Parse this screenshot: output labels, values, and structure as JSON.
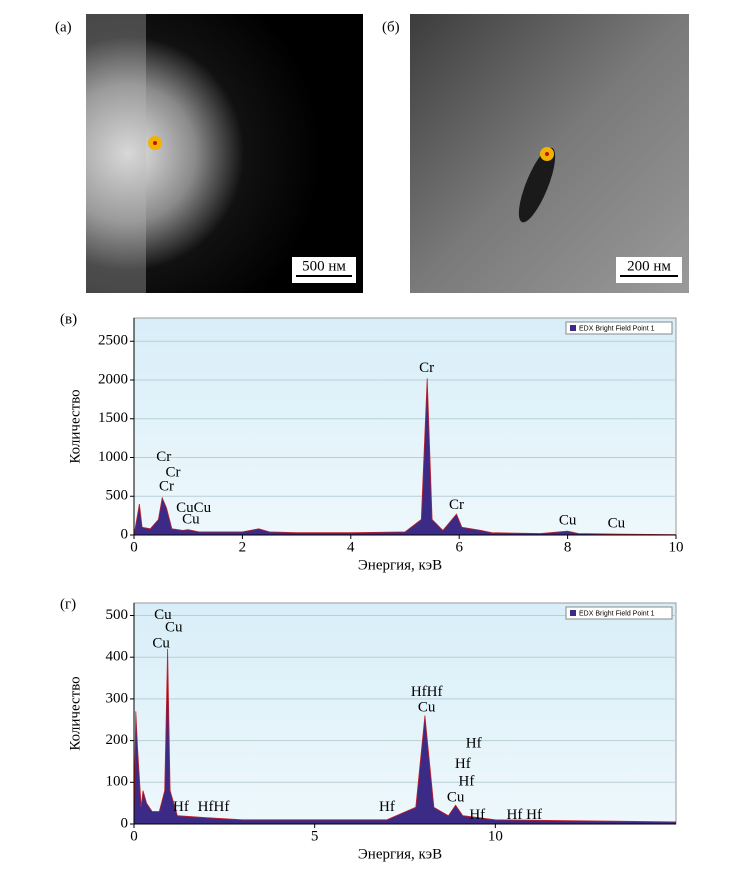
{
  "images": [
    {
      "label": "(a)",
      "scale": "500 нм"
    },
    {
      "label": "(б)",
      "scale": "200 нм"
    }
  ],
  "chart_data": [
    {
      "type": "area",
      "panel_label": "(в)",
      "xlabel": "Энергия, кэВ",
      "ylabel": "Количество",
      "legend": "EDX Bright Field Point 1",
      "color": "#3b2a86",
      "edge_color": "#c0202a",
      "grid": true,
      "x": [
        0,
        0.1,
        0.15,
        0.3,
        0.45,
        0.52,
        0.6,
        0.7,
        0.9,
        1.0,
        1.2,
        1.5,
        2.0,
        2.3,
        2.5,
        3,
        4,
        5,
        5.3,
        5.41,
        5.5,
        5.7,
        5.95,
        6.05,
        6.4,
        6.6,
        7.5,
        8.0,
        8.2,
        9,
        10
      ],
      "values": [
        0,
        400,
        100,
        80,
        200,
        480,
        350,
        80,
        60,
        70,
        40,
        40,
        40,
        80,
        40,
        30,
        30,
        40,
        200,
        2020,
        200,
        60,
        270,
        100,
        60,
        30,
        20,
        50,
        20,
        10,
        5
      ],
      "xlim": [
        0,
        10
      ],
      "ylim": [
        0,
        2800
      ],
      "xticks": [
        0,
        2,
        4,
        6,
        8,
        10
      ],
      "yticks": [
        0,
        500,
        1000,
        1500,
        2000,
        2500
      ],
      "annotations": [
        {
          "text": "Cr",
          "x": 0.55,
          "y": 1000
        },
        {
          "text": "Cr",
          "x": 0.72,
          "y": 800
        },
        {
          "text": "Cr",
          "x": 0.6,
          "y": 620
        },
        {
          "text": "CuCu",
          "x": 1.1,
          "y": 340
        },
        {
          "text": "Cu",
          "x": 1.05,
          "y": 190
        },
        {
          "text": "Cr",
          "x": 5.4,
          "y": 2150
        },
        {
          "text": "Cr",
          "x": 5.95,
          "y": 380
        },
        {
          "text": "Cu",
          "x": 8.0,
          "y": 180
        },
        {
          "text": "Cu",
          "x": 8.9,
          "y": 140
        }
      ]
    },
    {
      "type": "area",
      "panel_label": "(г)",
      "xlabel": "Энергия, кэВ",
      "ylabel": "Количество",
      "legend": "EDX Bright Field Point 1",
      "color": "#3b2a86",
      "edge_color": "#c0202a",
      "grid": true,
      "x": [
        0,
        0.05,
        0.1,
        0.2,
        0.25,
        0.35,
        0.5,
        0.7,
        0.85,
        0.93,
        1.0,
        1.2,
        2,
        3,
        5,
        7,
        7.8,
        8.05,
        8.3,
        8.7,
        8.9,
        9.1,
        10,
        12,
        15
      ],
      "values": [
        0,
        270,
        180,
        40,
        80,
        50,
        30,
        30,
        80,
        420,
        80,
        20,
        15,
        10,
        10,
        10,
        40,
        260,
        40,
        20,
        45,
        20,
        10,
        8,
        5
      ],
      "xlim": [
        0,
        15
      ],
      "ylim": [
        0,
        530
      ],
      "xticks": [
        0,
        5,
        10
      ],
      "yticks": [
        0,
        100,
        200,
        300,
        400,
        500
      ],
      "annotations": [
        {
          "text": "Cu",
          "x": 0.8,
          "y": 500
        },
        {
          "text": "Cu",
          "x": 1.1,
          "y": 470
        },
        {
          "text": "Cu",
          "x": 0.75,
          "y": 432
        },
        {
          "text": "Hf",
          "x": 1.3,
          "y": 40
        },
        {
          "text": "HfHf",
          "x": 2.2,
          "y": 40
        },
        {
          "text": "Hf",
          "x": 7.0,
          "y": 40
        },
        {
          "text": "HfHf",
          "x": 8.1,
          "y": 315
        },
        {
          "text": "Cu",
          "x": 8.1,
          "y": 278
        },
        {
          "text": "Hf",
          "x": 9.4,
          "y": 192
        },
        {
          "text": "Hf",
          "x": 9.1,
          "y": 143
        },
        {
          "text": "Hf",
          "x": 9.2,
          "y": 100
        },
        {
          "text": "Cu",
          "x": 8.9,
          "y": 62
        },
        {
          "text": "Hf",
          "x": 9.5,
          "y": 20
        },
        {
          "text": "Hf Hf",
          "x": 10.8,
          "y": 20
        }
      ]
    }
  ]
}
